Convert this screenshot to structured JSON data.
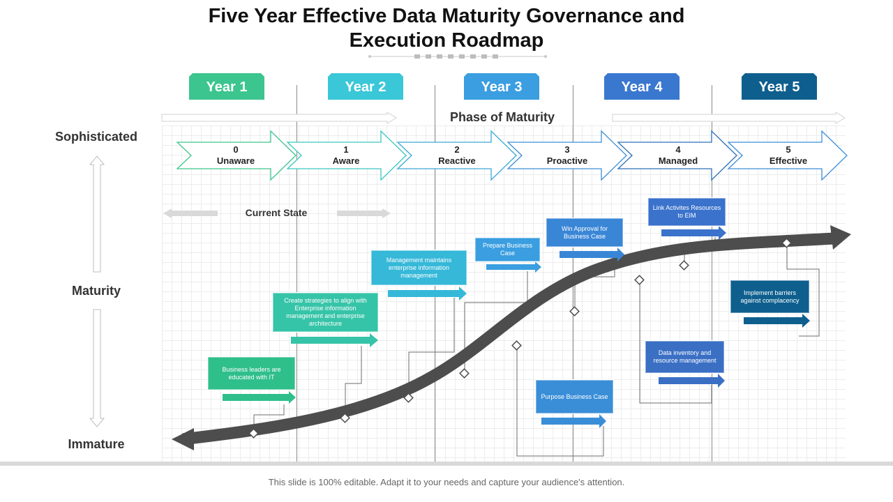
{
  "slide": {
    "title": "Five Year Effective Data Maturity Governance and Execution Roadmap",
    "footer": "This slide is 100% editable. Adapt it to your needs and capture your audience's attention."
  },
  "years": [
    {
      "label": "Year 1",
      "color": "#3cc58e"
    },
    {
      "label": "Year 2",
      "color": "#3ac7d8"
    },
    {
      "label": "Year 3",
      "color": "#3a9ee0"
    },
    {
      "label": "Year 4",
      "color": "#3a78cf"
    },
    {
      "label": "Year 5",
      "color": "#0e5f8e"
    }
  ],
  "phase_label": "Phase of Maturity",
  "axis": {
    "top": "Sophisticated",
    "middle": "Maturity",
    "bottom": "Immature"
  },
  "stages": [
    {
      "num": "0",
      "name": "Unaware",
      "color": "#3cc58e"
    },
    {
      "num": "1",
      "name": "Aware",
      "color": "#3ac7c0"
    },
    {
      "num": "2",
      "name": "Reactive",
      "color": "#3aa8d8"
    },
    {
      "num": "3",
      "name": "Proactive",
      "color": "#3a8ed8"
    },
    {
      "num": "4",
      "name": "Managed",
      "color": "#2a6fb8"
    },
    {
      "num": "5",
      "name": "Effective",
      "color": "#3a8ed8"
    }
  ],
  "current_state": "Current State",
  "milestones": [
    {
      "text": "Business leaders are educated with IT",
      "color": "#2fbf8a"
    },
    {
      "text": "Create strategies to align with Enterprise information management and enterprise architecture",
      "color": "#36c4a8"
    },
    {
      "text": "Management maintains enterprise information management",
      "color": "#36b8d8"
    },
    {
      "text": "Prepare Business Case",
      "color": "#3a9ee0"
    },
    {
      "text": "Win Approval for Business Case",
      "color": "#3a86d6"
    },
    {
      "text": "Purpose Business Case",
      "color": "#3a8ed8"
    },
    {
      "text": "Link Activites Resources to EIM",
      "color": "#3a72cc"
    },
    {
      "text": "Data inventory and resource management",
      "color": "#3a6fc4"
    },
    {
      "text": "Implement barriers against complacency",
      "color": "#0e5f8e"
    }
  ]
}
